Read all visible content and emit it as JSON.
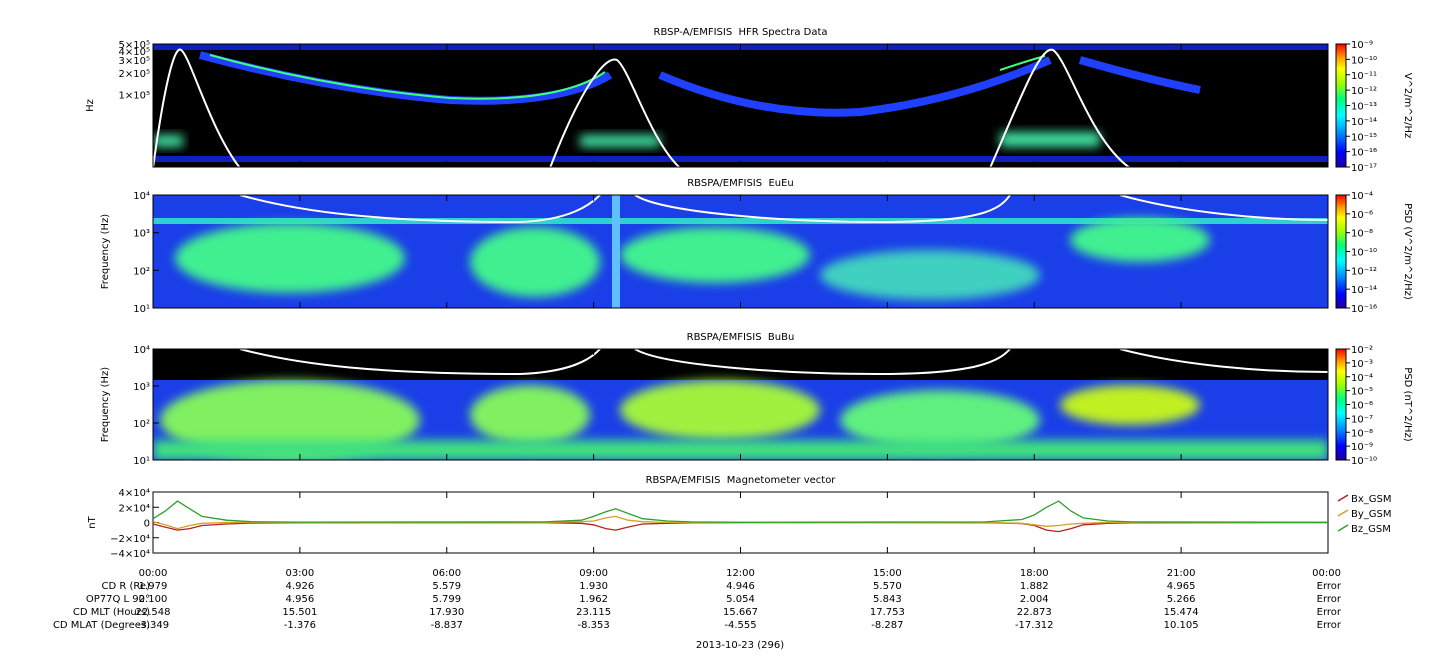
{
  "chart_data": [
    {
      "type": "spectrogram",
      "title": "RBSP-A/EMFISIS  HFR Spectra Data",
      "y_label": "Hz",
      "log_scale": true,
      "ylim": [
        10000,
        500000
      ],
      "yticks": [
        {
          "value": 100000,
          "label": "1×10⁵"
        },
        {
          "value": 200000,
          "label": "2×10⁵"
        },
        {
          "value": 300000,
          "label": "3×10⁵"
        },
        {
          "value": 400000,
          "label": "4×10⁵"
        },
        {
          "value": 500000,
          "label": "5×10⁵"
        }
      ],
      "colorbar": {
        "label": "V^2/m^2/Hz",
        "log_scale": true,
        "lim": [
          1e-17,
          1e-09
        ],
        "ticks": [
          {
            "value": 1e-17,
            "label": "10⁻¹⁷"
          },
          {
            "value": 1e-16,
            "label": "10⁻¹⁶"
          },
          {
            "value": 1e-15,
            "label": "10⁻¹⁵"
          },
          {
            "value": 1e-14,
            "label": "10⁻¹⁴"
          },
          {
            "value": 1e-13,
            "label": "10⁻¹³"
          },
          {
            "value": 1e-12,
            "label": "10⁻¹²"
          },
          {
            "value": 1e-11,
            "label": "10⁻¹¹"
          },
          {
            "value": 1e-10,
            "label": "10⁻¹⁰"
          },
          {
            "value": 1e-09,
            "label": "10⁻⁹"
          }
        ]
      }
    },
    {
      "type": "spectrogram",
      "title": "RBSPA/EMFISIS  EuEu",
      "y_label": "Frequency (Hz)",
      "log_scale": true,
      "ylim": [
        10,
        10000
      ],
      "yticks": [
        {
          "value": 10,
          "label": "10¹"
        },
        {
          "value": 100,
          "label": "10²"
        },
        {
          "value": 1000,
          "label": "10³"
        },
        {
          "value": 10000,
          "label": "10⁴"
        }
      ],
      "colorbar": {
        "label": "PSD (V^2/m^2/Hz)",
        "log_scale": true,
        "lim": [
          1e-16,
          0.0001
        ],
        "ticks": [
          {
            "value": 1e-16,
            "label": "10⁻¹⁶"
          },
          {
            "value": 1e-14,
            "label": "10⁻¹⁴"
          },
          {
            "value": 1e-12,
            "label": "10⁻¹²"
          },
          {
            "value": 1e-10,
            "label": "10⁻¹⁰"
          },
          {
            "value": 1e-08,
            "label": "10⁻⁸"
          },
          {
            "value": 1e-06,
            "label": "10⁻⁶"
          },
          {
            "value": 0.0001,
            "label": "10⁻⁴"
          }
        ]
      }
    },
    {
      "type": "spectrogram",
      "title": "RBSPA/EMFISIS  BuBu",
      "y_label": "Frequency (Hz)",
      "log_scale": true,
      "ylim": [
        10,
        10000
      ],
      "yticks": [
        {
          "value": 10,
          "label": "10¹"
        },
        {
          "value": 100,
          "label": "10²"
        },
        {
          "value": 1000,
          "label": "10³"
        },
        {
          "value": 10000,
          "label": "10⁴"
        }
      ],
      "colorbar": {
        "label": "PSD (nT^2/Hz)",
        "log_scale": true,
        "lim": [
          1e-10,
          0.01
        ],
        "ticks": [
          {
            "value": 1e-10,
            "label": "10⁻¹⁰"
          },
          {
            "value": 1e-09,
            "label": "10⁻⁹"
          },
          {
            "value": 1e-08,
            "label": "10⁻⁸"
          },
          {
            "value": 1e-07,
            "label": "10⁻⁷"
          },
          {
            "value": 1e-06,
            "label": "10⁻⁶"
          },
          {
            "value": 1e-05,
            "label": "10⁻⁵"
          },
          {
            "value": 0.0001,
            "label": "10⁻⁴"
          },
          {
            "value": 0.001,
            "label": "10⁻³"
          },
          {
            "value": 0.01,
            "label": "10⁻²"
          }
        ]
      }
    },
    {
      "type": "line",
      "title": "RBSPA/EMFISIS  Magnetometer vector",
      "y_label": "nT",
      "xlim": [
        0,
        24
      ],
      "xticks": [
        {
          "value": 0,
          "label": "00:00"
        },
        {
          "value": 3,
          "label": "03:00"
        },
        {
          "value": 6,
          "label": "06:00"
        },
        {
          "value": 9,
          "label": "09:00"
        },
        {
          "value": 12,
          "label": "12:00"
        },
        {
          "value": 15,
          "label": "15:00"
        },
        {
          "value": 18,
          "label": "18:00"
        },
        {
          "value": 21,
          "label": "21:00"
        },
        {
          "value": 24,
          "label": "00:00"
        }
      ],
      "ylim": [
        -40000,
        40000
      ],
      "yticks": [
        {
          "value": -40000,
          "label": "−4×10⁴"
        },
        {
          "value": -20000,
          "label": "−2×10⁴"
        },
        0,
        {
          "value": 20000,
          "label": "2×10⁴"
        },
        {
          "value": 40000,
          "label": "4×10⁴"
        }
      ],
      "x": [
        0,
        0.25,
        0.5,
        0.75,
        1,
        1.5,
        2,
        3,
        8,
        8.75,
        9,
        9.25,
        9.45,
        9.7,
        10,
        10.5,
        11,
        12,
        17,
        17.75,
        18,
        18.25,
        18.5,
        18.75,
        19,
        19.5,
        20,
        24
      ],
      "series": [
        {
          "name": "Bx_GSM",
          "color": "#b22222",
          "values": [
            -2000,
            -6000,
            -10000,
            -8000,
            -4000,
            -2000,
            -800,
            -200,
            -300,
            -1000,
            -3000,
            -8000,
            -10000,
            -6000,
            -2000,
            -1000,
            -400,
            -100,
            -300,
            -1500,
            -4000,
            -10000,
            -12000,
            -8000,
            -3000,
            -1000,
            -400,
            -100
          ]
        },
        {
          "name": "By_GSM",
          "color": "#d4a020",
          "values": [
            1000,
            -3000,
            -8000,
            -4000,
            -1000,
            0,
            0,
            0,
            0,
            1000,
            2000,
            6000,
            8000,
            3000,
            1000,
            0,
            0,
            0,
            0,
            -1000,
            -3000,
            -5000,
            -4000,
            -2000,
            -1000,
            0,
            0,
            0
          ]
        },
        {
          "name": "Bz_GSM",
          "color": "#2ca02c",
          "values": [
            5000,
            15000,
            28000,
            18000,
            8000,
            3000,
            1000,
            500,
            800,
            3000,
            8000,
            14000,
            18000,
            12000,
            5000,
            2000,
            800,
            300,
            800,
            4000,
            10000,
            20000,
            28000,
            15000,
            6000,
            2000,
            800,
            300
          ]
        }
      ]
    }
  ],
  "ephemeris": {
    "rows": [
      {
        "label": "CD R (Re)",
        "values": [
          "1.979",
          "4.926",
          "5.579",
          "1.930",
          "4.946",
          "5.570",
          "1.882",
          "4.965",
          "Error"
        ]
      },
      {
        "label": "OP77Q L 90°",
        "values": [
          "2.100",
          "4.956",
          "5.799",
          "1.962",
          "5.054",
          "5.843",
          "2.004",
          "5.266",
          "Error"
        ]
      },
      {
        "label": "CD MLT (Hours)",
        "values": [
          "22.548",
          "15.501",
          "17.930",
          "23.115",
          "15.667",
          "17.753",
          "22.873",
          "15.474",
          "Error"
        ]
      },
      {
        "label": "CD MLAT (Degrees)",
        "values": [
          "-3.349",
          "-1.376",
          "-8.837",
          "-8.353",
          "-4.555",
          "-8.287",
          "-17.312",
          "10.105",
          "Error"
        ]
      }
    ],
    "date": "2013-10-23 (296)"
  }
}
